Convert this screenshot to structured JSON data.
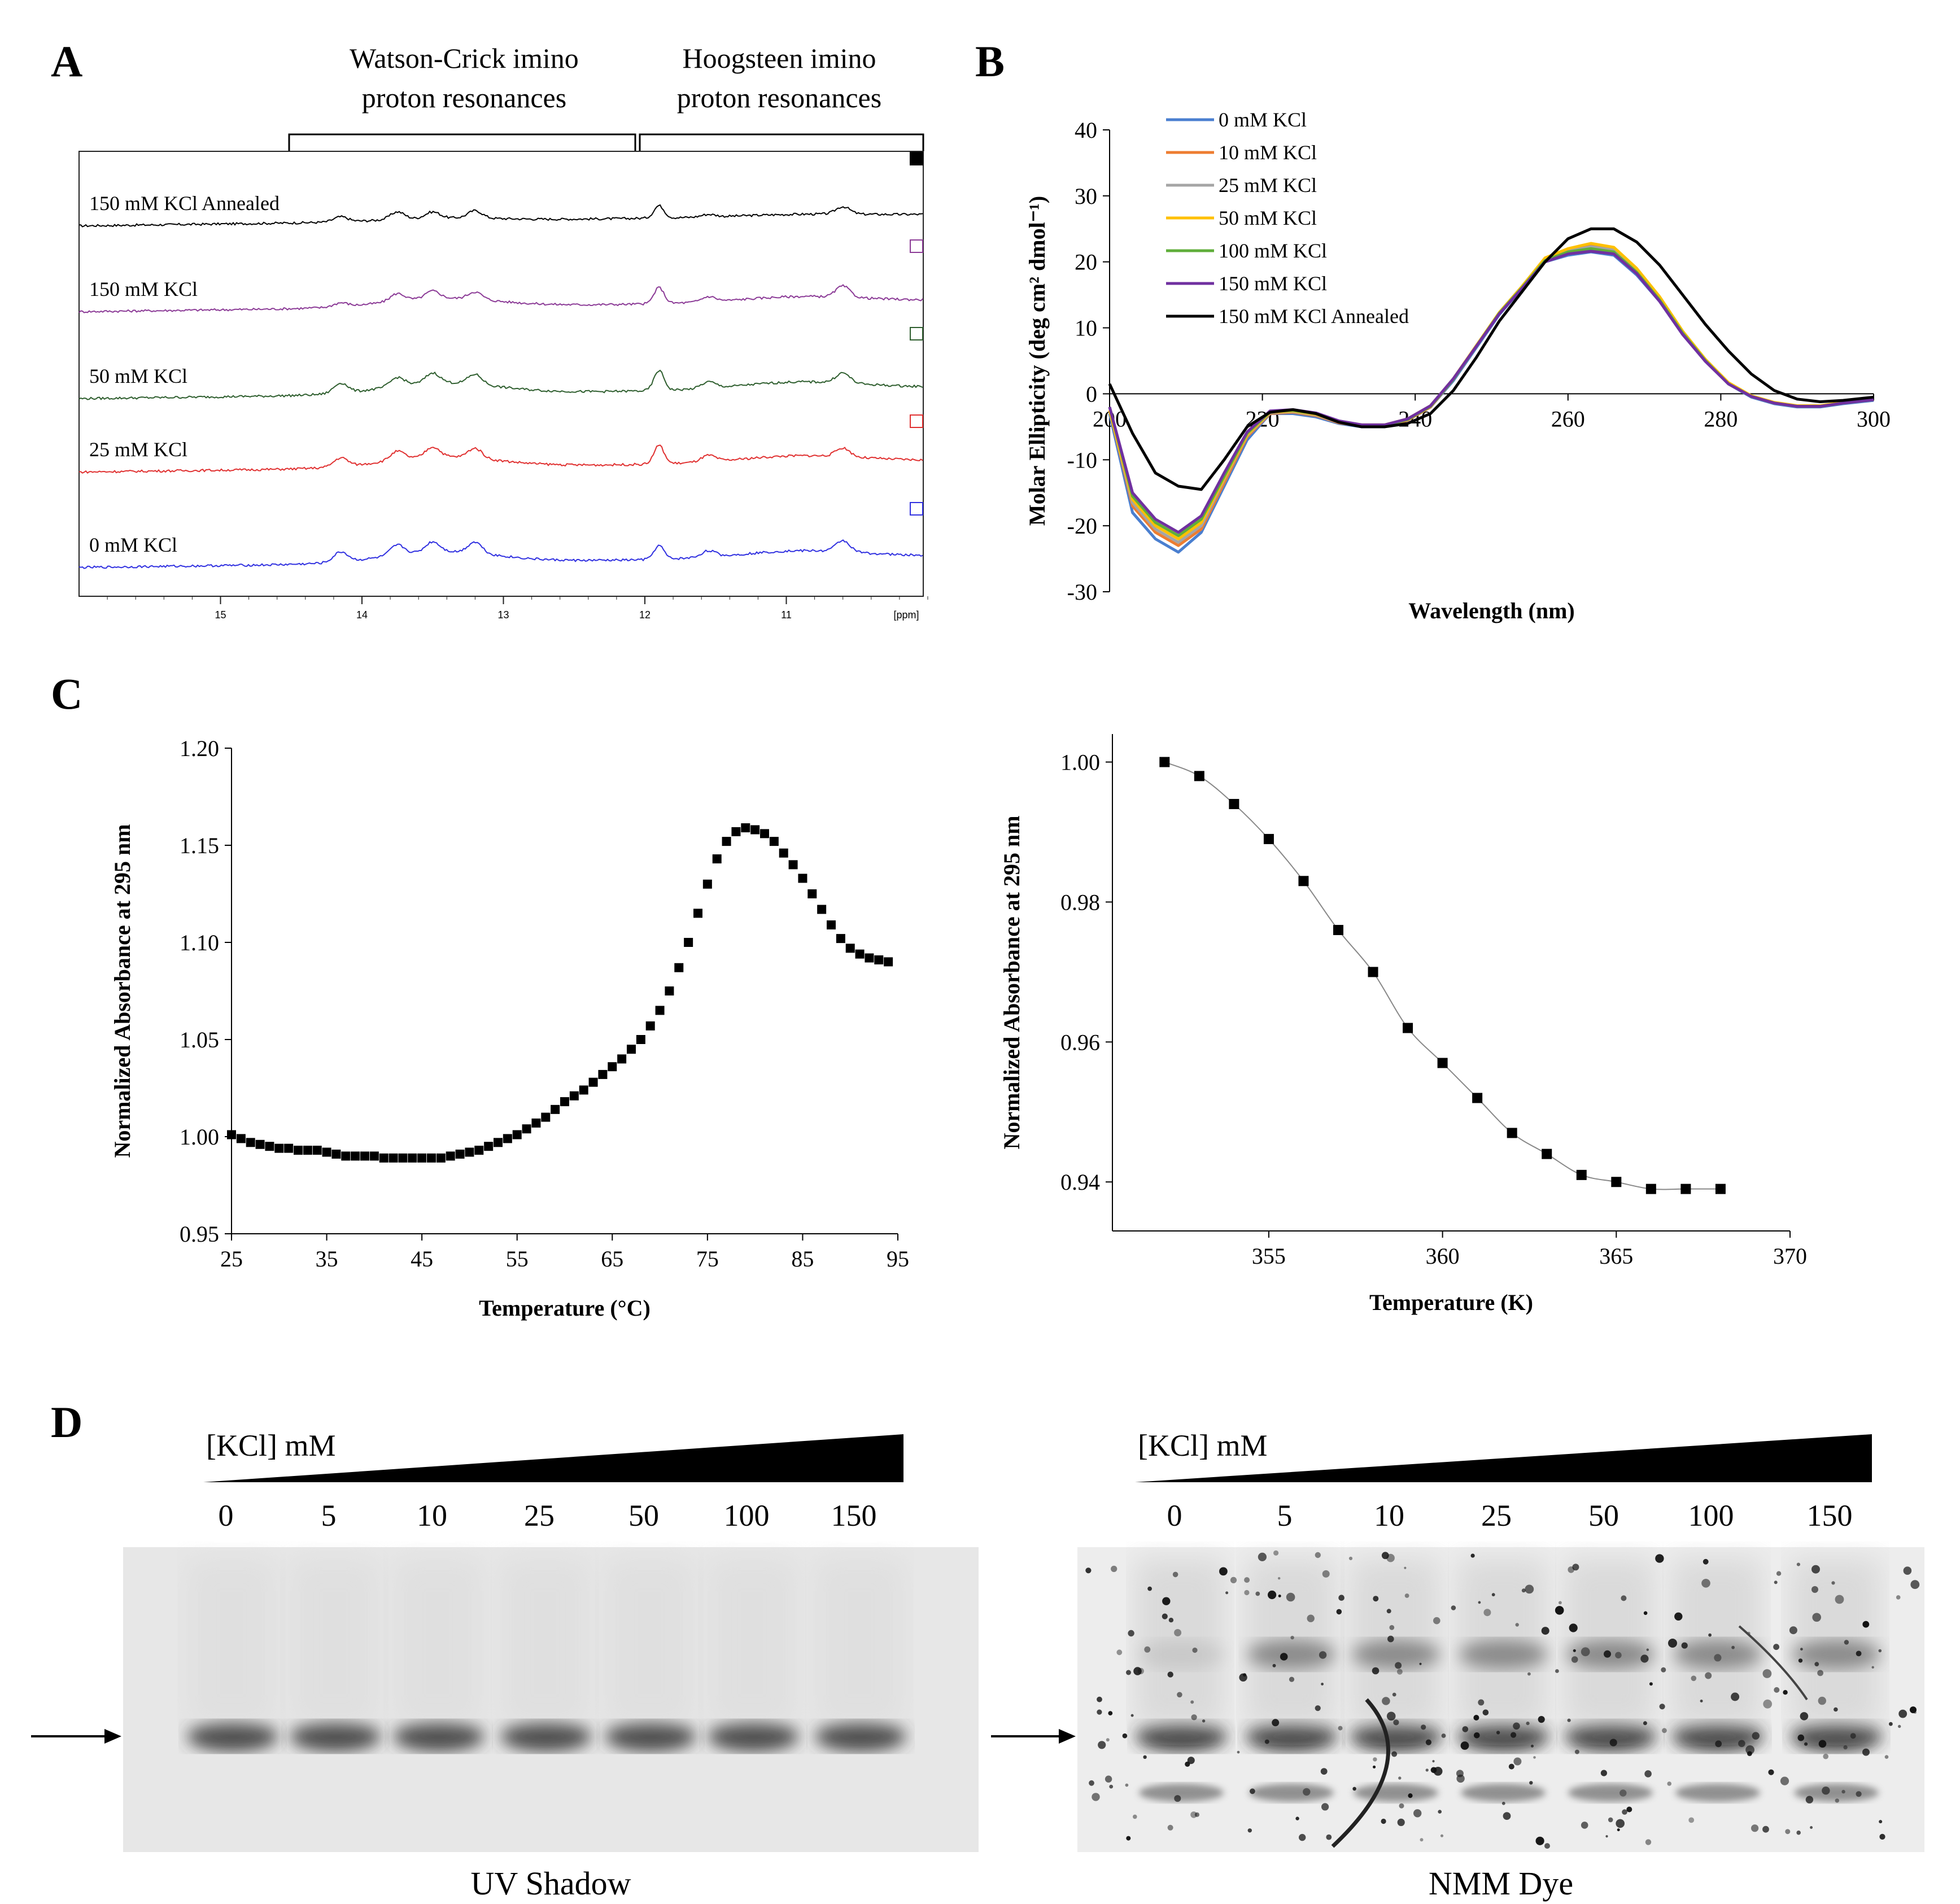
{
  "panels": {
    "A": "A",
    "B": "B",
    "C": "C",
    "D": "D"
  },
  "panelA": {
    "header_wc": [
      "Watson-Crick imino",
      "proton resonances"
    ],
    "header_hg": [
      "Hoogsteen imino",
      "proton resonances"
    ],
    "axis_ticks": [
      "15",
      "14",
      "13",
      "12",
      "11"
    ],
    "axis_unit": "[ppm]",
    "traces": [
      {
        "label": "150 mM KCl Annealed",
        "color": "#000000"
      },
      {
        "label": "150 mM KCl",
        "color": "#8b3a96"
      },
      {
        "label": "50 mM KCl",
        "color": "#2e5e2e"
      },
      {
        "label": "25 mM KCl",
        "color": "#e03030"
      },
      {
        "label": "0 mM KCl",
        "color": "#3030e0"
      }
    ],
    "peaks_ppm": [
      14.15,
      13.75,
      13.5,
      13.2,
      11.9,
      11.55,
      10.6
    ]
  },
  "chart_data": [
    {
      "type": "line",
      "title": "",
      "xlabel": "Wavelength (nm)",
      "ylabel": "Molar Ellipticity (deg cm² dmol⁻¹)",
      "xlim": [
        200,
        300
      ],
      "ylim": [
        -30,
        40
      ],
      "xticks": [
        "200",
        "220",
        "240",
        "260",
        "280",
        "300"
      ],
      "yticks": [
        "-30",
        "-20",
        "-10",
        "0",
        "10",
        "20",
        "30",
        "40"
      ],
      "series": [
        {
          "name": "0 mM KCl",
          "color": "#4a7fd0",
          "x": [
            200,
            203,
            206,
            209,
            212,
            215,
            218,
            221,
            224,
            227,
            230,
            233,
            236,
            239,
            242,
            245,
            248,
            251,
            254,
            257,
            260,
            263,
            266,
            269,
            272,
            275,
            278,
            281,
            284,
            287,
            290,
            293,
            296,
            300
          ],
          "values": [
            -3,
            -18,
            -22,
            -24,
            -21,
            -14,
            -7,
            -3,
            -3,
            -3.5,
            -4.5,
            -5,
            -5,
            -4,
            -2,
            2,
            7,
            12,
            16,
            20,
            21,
            21.5,
            21,
            18,
            14,
            9,
            5,
            1.5,
            -0.5,
            -1.5,
            -2,
            -2,
            -1.5,
            -1
          ]
        },
        {
          "name": "10 mM KCl",
          "color": "#ed7d31",
          "x": [
            200,
            203,
            206,
            209,
            212,
            215,
            218,
            221,
            224,
            227,
            230,
            233,
            236,
            239,
            242,
            245,
            248,
            251,
            254,
            257,
            260,
            263,
            266,
            269,
            272,
            275,
            278,
            281,
            284,
            287,
            290,
            293,
            296,
            300
          ],
          "values": [
            -2.5,
            -17,
            -21,
            -23,
            -20.5,
            -13.5,
            -6.5,
            -3,
            -2.8,
            -3.3,
            -4.4,
            -4.9,
            -4.9,
            -4,
            -2,
            2.2,
            7.2,
            12.3,
            16.3,
            20.5,
            21.8,
            22.5,
            22,
            18.8,
            14.5,
            9.4,
            5.2,
            1.6,
            -0.4,
            -1.4,
            -1.9,
            -1.9,
            -1.4,
            -0.9
          ]
        },
        {
          "name": "25 mM KCl",
          "color": "#a5a5a5",
          "x": [
            200,
            203,
            206,
            209,
            212,
            215,
            218,
            221,
            224,
            227,
            230,
            233,
            236,
            239,
            242,
            245,
            248,
            251,
            254,
            257,
            260,
            263,
            266,
            269,
            272,
            275,
            278,
            281,
            284,
            287,
            290,
            293,
            296,
            300
          ],
          "values": [
            -2.5,
            -16.5,
            -20.5,
            -22.5,
            -20,
            -13,
            -6.3,
            -2.9,
            -2.7,
            -3.2,
            -4.3,
            -4.8,
            -4.8,
            -3.9,
            -1.9,
            2.2,
            7.2,
            12.2,
            16.2,
            20.3,
            21.6,
            22.3,
            21.8,
            18.6,
            14.4,
            9.3,
            5.1,
            1.6,
            -0.4,
            -1.4,
            -1.9,
            -1.9,
            -1.4,
            -0.9
          ]
        },
        {
          "name": "50 mM KCl",
          "color": "#ffc000",
          "x": [
            200,
            203,
            206,
            209,
            212,
            215,
            218,
            221,
            224,
            227,
            230,
            233,
            236,
            239,
            242,
            245,
            248,
            251,
            254,
            257,
            260,
            263,
            266,
            269,
            272,
            275,
            278,
            281,
            284,
            287,
            290,
            293,
            296,
            300
          ],
          "values": [
            -2.5,
            -16,
            -20,
            -22,
            -19.5,
            -12.8,
            -6.2,
            -2.8,
            -2.6,
            -3.1,
            -4.2,
            -4.7,
            -4.7,
            -3.8,
            -1.8,
            2.3,
            7.3,
            12.3,
            16.3,
            20.6,
            22,
            22.8,
            22.2,
            19,
            14.7,
            9.5,
            5.2,
            1.7,
            -0.3,
            -1.3,
            -1.8,
            -1.8,
            -1.3,
            -0.8
          ]
        },
        {
          "name": "100 mM KCl",
          "color": "#5fae3a",
          "x": [
            200,
            203,
            206,
            209,
            212,
            215,
            218,
            221,
            224,
            227,
            230,
            233,
            236,
            239,
            242,
            245,
            248,
            251,
            254,
            257,
            260,
            263,
            266,
            269,
            272,
            275,
            278,
            281,
            284,
            287,
            290,
            293,
            296,
            300
          ],
          "values": [
            -2,
            -15.5,
            -19.5,
            -21.5,
            -19,
            -12.5,
            -6,
            -2.7,
            -2.5,
            -3,
            -4.2,
            -4.8,
            -4.8,
            -3.9,
            -1.9,
            2.2,
            7.2,
            12.2,
            16.1,
            20.2,
            21.5,
            22,
            21.5,
            18.4,
            14.2,
            9.2,
            5,
            1.5,
            -0.4,
            -1.4,
            -1.9,
            -1.9,
            -1.4,
            -0.9
          ]
        },
        {
          "name": "150 mM KCl",
          "color": "#7030a0",
          "x": [
            200,
            203,
            206,
            209,
            212,
            215,
            218,
            221,
            224,
            227,
            230,
            233,
            236,
            239,
            242,
            245,
            248,
            251,
            254,
            257,
            260,
            263,
            266,
            269,
            272,
            275,
            278,
            281,
            284,
            287,
            290,
            293,
            296,
            300
          ],
          "values": [
            -2,
            -15,
            -19,
            -21,
            -18.5,
            -12,
            -5.8,
            -2.6,
            -2.4,
            -2.9,
            -4.1,
            -4.7,
            -4.7,
            -3.8,
            -1.8,
            2.3,
            7.2,
            12.1,
            16,
            20,
            21.2,
            21.6,
            21.2,
            18.2,
            14,
            9,
            4.9,
            1.5,
            -0.4,
            -1.4,
            -1.9,
            -1.9,
            -1.4,
            -0.9
          ]
        },
        {
          "name": "150 mM KCl Annealed",
          "color": "#000000",
          "x": [
            200,
            203,
            206,
            209,
            212,
            215,
            218,
            221,
            224,
            227,
            230,
            233,
            236,
            239,
            242,
            245,
            248,
            251,
            254,
            257,
            260,
            263,
            266,
            269,
            272,
            275,
            278,
            281,
            284,
            287,
            290,
            293,
            296,
            300
          ],
          "values": [
            1.5,
            -6,
            -12,
            -14,
            -14.5,
            -10,
            -5,
            -2.8,
            -2.4,
            -3,
            -4.3,
            -5,
            -5,
            -4.5,
            -3,
            0.5,
            5.5,
            11,
            15.5,
            20,
            23.5,
            25,
            25,
            23,
            19.5,
            15,
            10.5,
            6.5,
            3,
            0.5,
            -0.8,
            -1.2,
            -1,
            -0.5
          ]
        }
      ],
      "legend": "top-left"
    },
    {
      "type": "scatter",
      "title": "",
      "xlabel": "Temperature (°C)",
      "ylabel": "Normalized Absorbance at 295 nm",
      "xlim": [
        25,
        95
      ],
      "ylim": [
        0.95,
        1.2
      ],
      "xticks": [
        "25",
        "35",
        "45",
        "55",
        "65",
        "75",
        "85",
        "95"
      ],
      "yticks": [
        "0.95",
        "1.00",
        "1.05",
        "1.10",
        "1.15",
        "1.20"
      ],
      "x": [
        25,
        26,
        27,
        28,
        29,
        30,
        31,
        32,
        33,
        34,
        35,
        36,
        37,
        38,
        39,
        40,
        41,
        42,
        43,
        44,
        45,
        46,
        47,
        48,
        49,
        50,
        51,
        52,
        53,
        54,
        55,
        56,
        57,
        58,
        59,
        60,
        61,
        62,
        63,
        64,
        65,
        66,
        67,
        68,
        69,
        70,
        71,
        72,
        73,
        74,
        75,
        76,
        77,
        78,
        79,
        80,
        81,
        82,
        83,
        84,
        85,
        86,
        87,
        88,
        89,
        90,
        91,
        92,
        93,
        94
      ],
      "values": [
        1.001,
        0.999,
        0.997,
        0.996,
        0.995,
        0.994,
        0.994,
        0.993,
        0.993,
        0.993,
        0.992,
        0.991,
        0.99,
        0.99,
        0.99,
        0.99,
        0.989,
        0.989,
        0.989,
        0.989,
        0.989,
        0.989,
        0.989,
        0.99,
        0.991,
        0.992,
        0.993,
        0.995,
        0.997,
        0.999,
        1.001,
        1.004,
        1.007,
        1.01,
        1.014,
        1.018,
        1.021,
        1.024,
        1.028,
        1.032,
        1.036,
        1.04,
        1.045,
        1.05,
        1.057,
        1.065,
        1.075,
        1.087,
        1.1,
        1.115,
        1.13,
        1.143,
        1.152,
        1.157,
        1.159,
        1.158,
        1.156,
        1.152,
        1.146,
        1.14,
        1.133,
        1.125,
        1.117,
        1.109,
        1.102,
        1.097,
        1.094,
        1.092,
        1.091,
        1.09
      ]
    },
    {
      "type": "scatter",
      "title": "",
      "xlabel": "Temperature (K)",
      "ylabel": "Normalized Absorbance at 295 nm",
      "xlim": [
        350.5,
        370
      ],
      "ylim": [
        0.933,
        1.004
      ],
      "xticks": [
        "355",
        "360",
        "365",
        "370"
      ],
      "yticks": [
        "0.94",
        "0.96",
        "0.98",
        "1.00"
      ],
      "x": [
        352,
        353,
        354,
        355,
        356,
        357,
        358,
        359,
        360,
        361,
        362,
        363,
        364,
        365,
        366,
        367,
        368
      ],
      "values": [
        1.0,
        0.998,
        0.994,
        0.989,
        0.983,
        0.976,
        0.97,
        0.962,
        0.957,
        0.952,
        0.947,
        0.944,
        0.941,
        0.94,
        0.939,
        0.939,
        0.939
      ]
    }
  ],
  "panelD": {
    "kcl_label": "[KCl] mM",
    "lanes": [
      "0",
      "5",
      "10",
      "25",
      "50",
      "100",
      "150"
    ],
    "captions": {
      "left": "UV Shadow",
      "right": "NMM Dye"
    }
  }
}
